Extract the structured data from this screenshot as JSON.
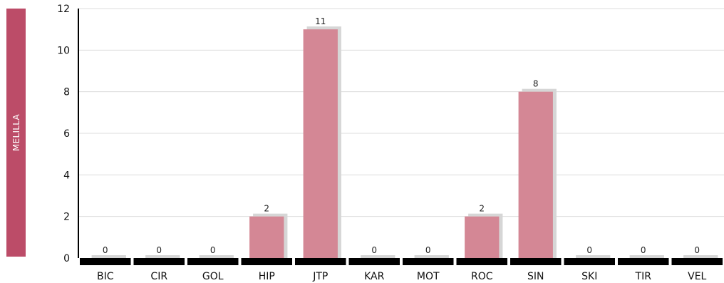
{
  "region_label": "MELILLA",
  "chart_data": {
    "type": "bar",
    "categories": [
      "BIC",
      "CIR",
      "GOL",
      "HIP",
      "JTP",
      "KAR",
      "MOT",
      "ROC",
      "SIN",
      "SKI",
      "TIR",
      "VEL"
    ],
    "values": [
      0,
      0,
      0,
      2,
      11,
      0,
      0,
      2,
      8,
      0,
      0,
      0
    ],
    "ylim": [
      0,
      12
    ],
    "yticks": [
      0,
      2,
      4,
      6,
      8,
      10,
      12
    ],
    "grid": true,
    "title": "",
    "xlabel": "",
    "ylabel": ""
  },
  "colors": {
    "bar": "#d48795",
    "bar_shadow": "#d6d6d6",
    "grid": "#dcdcdc",
    "axis": "#000000",
    "region_band": "#bc4c68"
  }
}
